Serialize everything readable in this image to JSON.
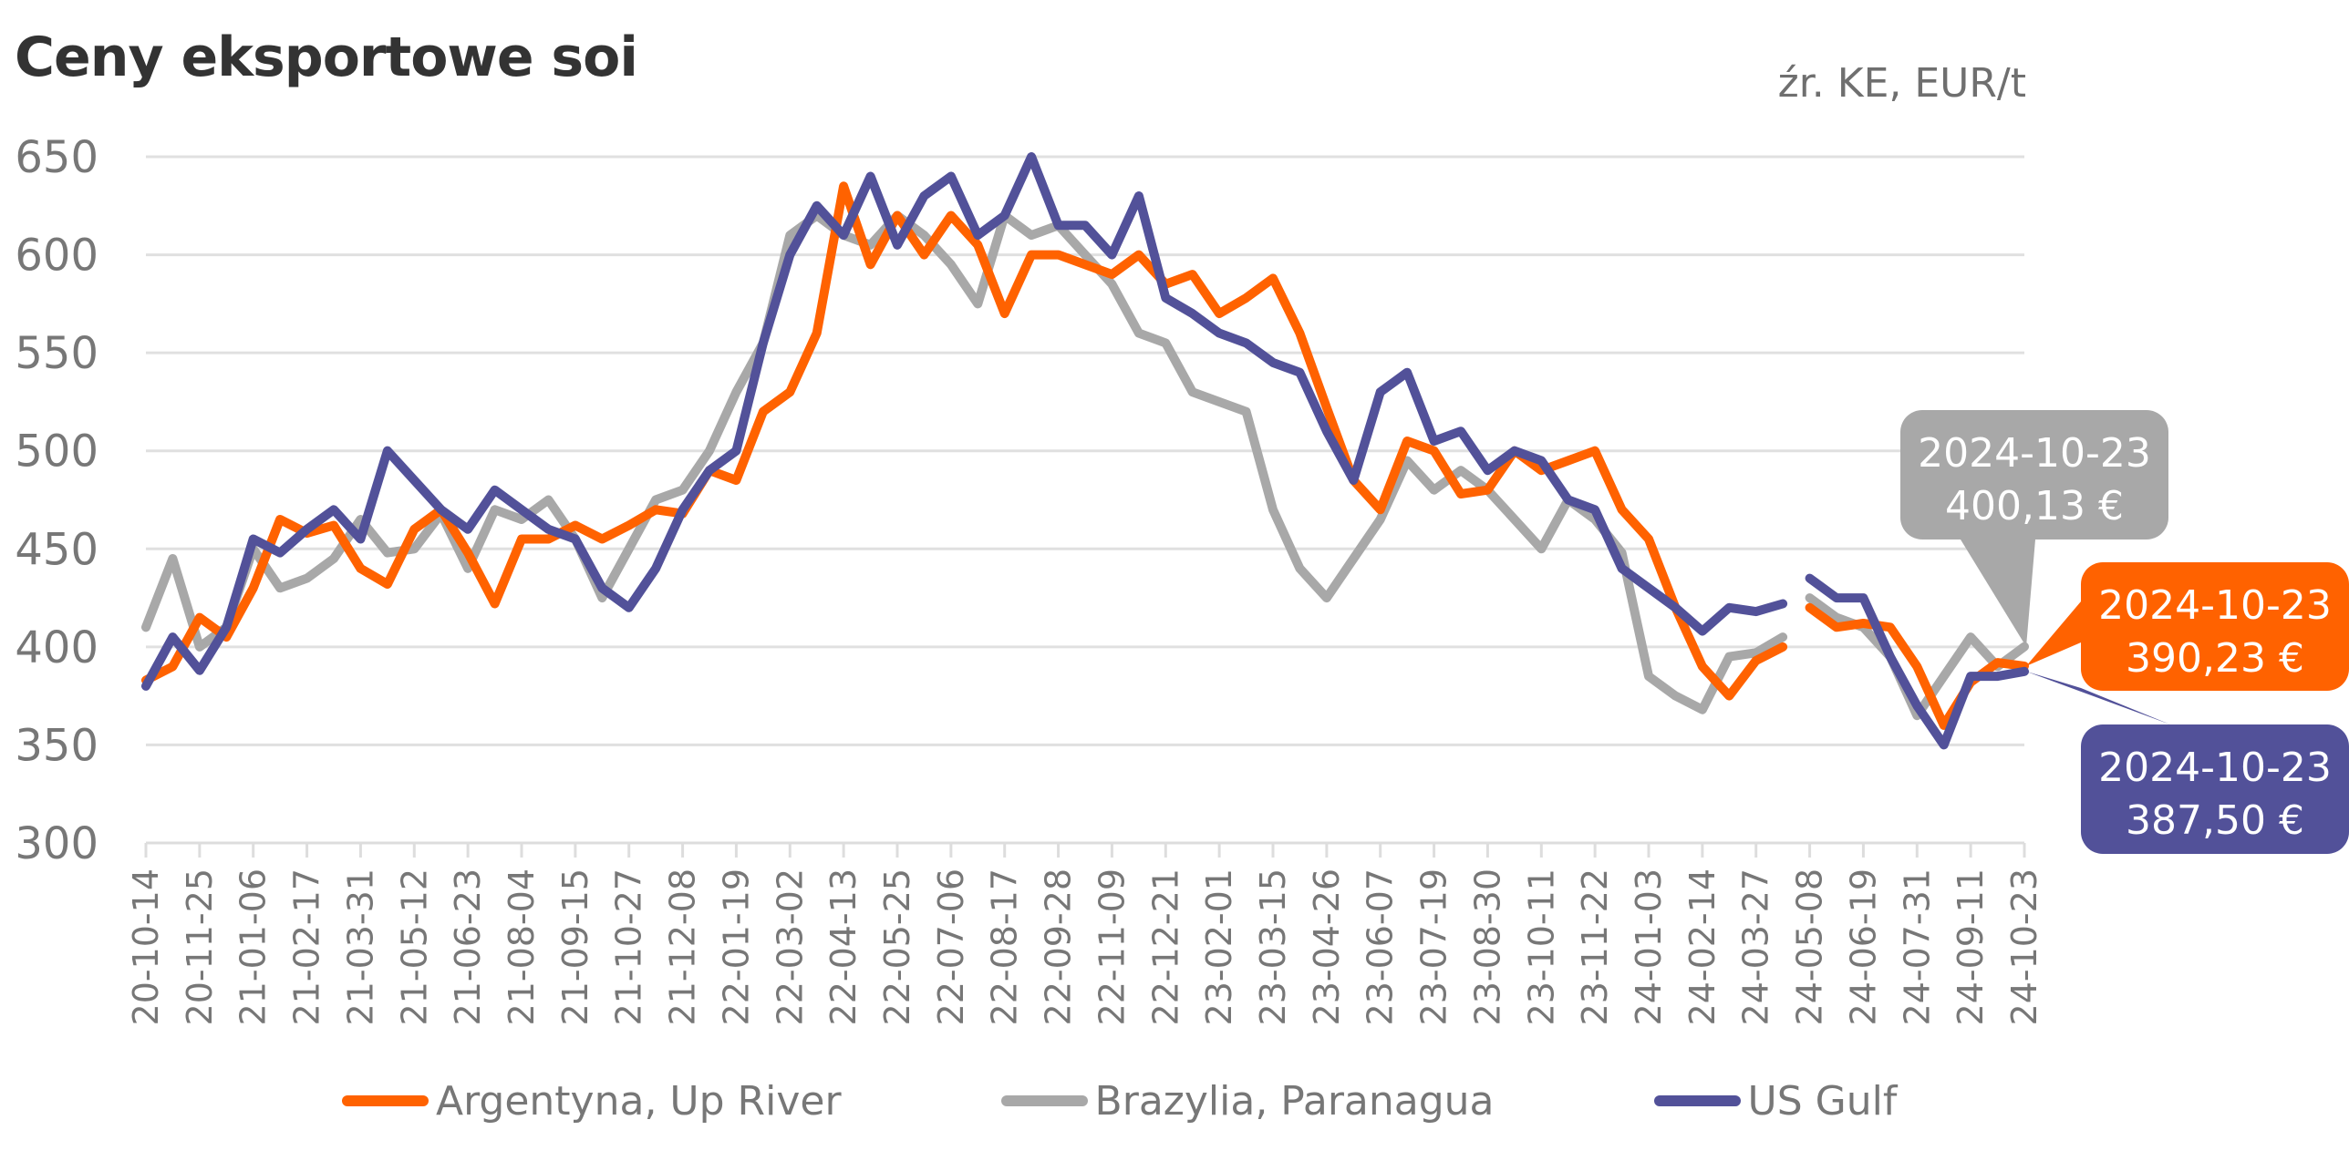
{
  "chart_data": {
    "type": "line",
    "title": "Ceny eksportowe soi",
    "source_note": "źr. KE, EUR/t",
    "xlabel": "",
    "ylabel": "",
    "ylim": [
      300,
      650
    ],
    "yticks": [
      "650",
      "600",
      "550",
      "500",
      "450",
      "400",
      "350",
      "300"
    ],
    "ytick_values": [
      650,
      600,
      550,
      500,
      450,
      400,
      350,
      300
    ],
    "grid": true,
    "legend_position": "bottom",
    "categories": [
      "20-10-14",
      "20-11-25",
      "21-01-06",
      "21-02-17",
      "21-03-31",
      "21-05-12",
      "21-06-23",
      "21-08-04",
      "21-09-15",
      "21-10-27",
      "21-12-08",
      "22-01-19",
      "22-03-02",
      "22-04-13",
      "22-05-25",
      "22-07-06",
      "22-08-17",
      "22-09-28",
      "22-11-09",
      "22-12-21",
      "23-02-01",
      "23-03-15",
      "23-04-26",
      "23-06-07",
      "23-07-19",
      "23-08-30",
      "23-10-11",
      "23-11-22",
      "24-01-03",
      "24-02-14",
      "24-03-27",
      "24-05-08",
      "24-06-19",
      "24-07-31",
      "24-09-11",
      "24-10-23"
    ],
    "x_index": [
      0,
      0.5,
      1,
      1.5,
      2,
      2.5,
      3,
      3.5,
      4,
      4.5,
      5,
      5.5,
      6,
      6.5,
      7,
      7.5,
      8,
      8.5,
      9,
      9.5,
      10,
      10.5,
      11,
      11.5,
      12,
      12.5,
      13,
      13.5,
      14,
      14.5,
      15,
      15.5,
      16,
      16.5,
      17,
      17.5,
      18,
      18.5,
      19,
      19.5,
      20,
      20.5,
      21,
      21.5,
      22,
      22.5,
      23,
      23.5,
      24,
      24.5,
      25,
      25.5,
      26,
      26.5,
      27,
      27.5,
      28,
      28.5,
      29,
      29.5,
      30,
      30.5,
      30.75,
      31,
      31.5,
      32,
      32.5,
      33,
      33.5,
      34,
      34.5,
      35
    ],
    "series": [
      {
        "name": "Argentyna, Up River",
        "color": "#FF6200",
        "values": [
          383,
          390,
          415,
          405,
          430,
          465,
          458,
          462,
          440,
          432,
          460,
          470,
          448,
          422,
          455,
          455,
          462,
          455,
          462,
          470,
          468,
          490,
          485,
          520,
          530,
          560,
          635,
          595,
          620,
          600,
          620,
          605,
          570,
          600,
          600,
          595,
          590,
          600,
          585,
          590,
          570,
          578,
          588,
          560,
          522,
          485,
          470,
          505,
          500,
          478,
          480,
          500,
          490,
          495,
          500,
          470,
          455,
          420,
          390,
          375,
          393,
          400,
          null,
          420,
          410,
          412,
          410,
          390,
          360,
          382,
          392,
          390.23
        ]
      },
      {
        "name": "Brazylia, Paranagua",
        "color": "#A8A8A8",
        "values": [
          410,
          445,
          400,
          410,
          450,
          430,
          435,
          445,
          465,
          448,
          450,
          468,
          440,
          470,
          465,
          475,
          455,
          425,
          450,
          475,
          480,
          500,
          530,
          555,
          610,
          620,
          610,
          605,
          620,
          610,
          595,
          575,
          620,
          610,
          615,
          600,
          585,
          560,
          555,
          530,
          525,
          520,
          470,
          440,
          425,
          445,
          465,
          495,
          480,
          490,
          480,
          465,
          450,
          475,
          465,
          448,
          385,
          375,
          368,
          395,
          397,
          405,
          null,
          425,
          415,
          410,
          395,
          365,
          385,
          405,
          390,
          400.13
        ]
      },
      {
        "name": "US Gulf",
        "color": "#525199",
        "values": [
          380,
          405,
          388,
          410,
          455,
          448,
          460,
          470,
          455,
          500,
          485,
          470,
          460,
          480,
          470,
          460,
          455,
          430,
          420,
          440,
          470,
          490,
          500,
          555,
          600,
          625,
          610,
          640,
          605,
          630,
          640,
          610,
          620,
          650,
          615,
          615,
          600,
          630,
          578,
          570,
          560,
          555,
          545,
          540,
          510,
          485,
          530,
          540,
          505,
          510,
          490,
          500,
          495,
          475,
          470,
          440,
          430,
          420,
          408,
          420,
          418,
          422,
          null,
          435,
          425,
          425,
          395,
          370,
          350,
          385,
          385,
          387.5
        ]
      }
    ],
    "annotations": [
      {
        "series": "Brazylia, Paranagua",
        "date": "2024-10-23",
        "value": "400,13 €",
        "color": "#A8A8A8"
      },
      {
        "series": "Argentyna, Up River",
        "date": "2024-10-23",
        "value": "390,23 €",
        "color": "#FF6200"
      },
      {
        "series": "US Gulf",
        "date": "2024-10-23",
        "value": "387,50 €",
        "color": "#525199"
      }
    ]
  }
}
